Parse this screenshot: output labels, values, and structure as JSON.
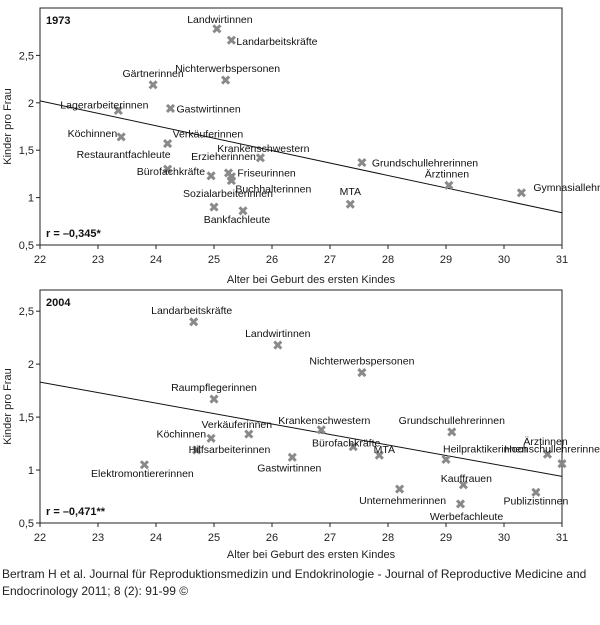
{
  "caption": "Bertram H et al. Journal für Reproduktionsmedizin und Endokrinologie - Journal of Reproductive Medicine and Endocrinology 2011; 8 (2): 91-99 ©",
  "chart_data": [
    {
      "type": "scatter",
      "panel": "1973",
      "xlabel": "Alter bei Geburt des ersten Kindes",
      "ylabel": "Kinder pro Frau",
      "xlim": [
        22,
        31
      ],
      "ylim": [
        0.5,
        3.0
      ],
      "xticks": [
        "22",
        "23",
        "24",
        "25",
        "26",
        "27",
        "28",
        "29",
        "30",
        "31"
      ],
      "yticks": [
        "0,5",
        "1",
        "1,5",
        "2",
        "2,5"
      ],
      "correlation": "r = –0,345*",
      "marker_color": "#8a8a8a",
      "regression": {
        "x": [
          22,
          31
        ],
        "y": [
          2.02,
          0.84
        ]
      },
      "points": [
        {
          "label": "Landwirtinnen",
          "x": 25.05,
          "y": 2.78
        },
        {
          "label": "Landarbeitskräfte",
          "x": 25.3,
          "y": 2.66
        },
        {
          "label": "Gärtnerinnen",
          "x": 23.95,
          "y": 2.19
        },
        {
          "label": "Nichterwerbspersonen",
          "x": 25.2,
          "y": 2.24
        },
        {
          "label": "Lagerarbeiterinnen",
          "x": 23.35,
          "y": 1.92
        },
        {
          "label": "Gastwirtinnen",
          "x": 24.25,
          "y": 1.94
        },
        {
          "label": "Köchinnen",
          "x": 23.4,
          "y": 1.64
        },
        {
          "label": "Verkäuferinnen",
          "x": 24.2,
          "y": 1.57
        },
        {
          "label": "Krankenschwestern",
          "x": 25.8,
          "y": 1.42
        },
        {
          "label": "Erzieherinnen",
          "x": 25.25,
          "y": 1.26
        },
        {
          "label": "Restaurantfachleute",
          "x": 24.2,
          "y": 1.3
        },
        {
          "label": "Friseurinnen",
          "x": 25.3,
          "y": 1.22
        },
        {
          "label": "Bürofachkräfte",
          "x": 24.95,
          "y": 1.23
        },
        {
          "label": "Buchhalterinnen",
          "x": 25.3,
          "y": 1.18
        },
        {
          "label": "Grundschullehrerinnen",
          "x": 27.55,
          "y": 1.37
        },
        {
          "label": "Ärztinnen",
          "x": 29.05,
          "y": 1.13
        },
        {
          "label": "Gymnasiallehrerinnen",
          "x": 30.3,
          "y": 1.05
        },
        {
          "label": "Sozialarbeiterinnen",
          "x": 25.0,
          "y": 0.9
        },
        {
          "label": "MTA",
          "x": 27.35,
          "y": 0.93
        },
        {
          "label": "Bankfachleute",
          "x": 25.5,
          "y": 0.86
        }
      ]
    },
    {
      "type": "scatter",
      "panel": "2004",
      "xlabel": "Alter bei Geburt des ersten Kindes",
      "ylabel": "Kinder pro Frau",
      "xlim": [
        22,
        31
      ],
      "ylim": [
        0.5,
        2.7
      ],
      "xticks": [
        "22",
        "23",
        "24",
        "25",
        "26",
        "27",
        "28",
        "29",
        "30",
        "31"
      ],
      "yticks": [
        "0,5",
        "1",
        "1,5",
        "2",
        "2,5"
      ],
      "correlation": "r = –0,471**",
      "marker_color": "#8a8a8a",
      "regression": {
        "x": [
          22,
          31
        ],
        "y": [
          1.83,
          0.94
        ]
      },
      "points": [
        {
          "label": "Landarbeitskräfte",
          "x": 24.65,
          "y": 2.4
        },
        {
          "label": "Landwirtinnen",
          "x": 26.1,
          "y": 2.18
        },
        {
          "label": "Nichterwerbspersonen",
          "x": 27.55,
          "y": 1.92
        },
        {
          "label": "Raumpflegerinnen",
          "x": 25.0,
          "y": 1.67
        },
        {
          "label": "Verkäuferinnen",
          "x": 25.6,
          "y": 1.34
        },
        {
          "label": "Krankenschwestern",
          "x": 26.85,
          "y": 1.38
        },
        {
          "label": "Köchinnen",
          "x": 24.95,
          "y": 1.3
        },
        {
          "label": "Grundschullehrerinnen",
          "x": 29.1,
          "y": 1.36
        },
        {
          "label": "Ärztinnen",
          "x": 30.75,
          "y": 1.15
        },
        {
          "label": "Hilfsarbeiterinnen",
          "x": 24.7,
          "y": 1.19
        },
        {
          "label": "Elektromontiererinnen",
          "x": 23.8,
          "y": 1.05
        },
        {
          "label": "Bürofachkräfte",
          "x": 27.4,
          "y": 1.22
        },
        {
          "label": "Heilpraktikerinnen",
          "x": 29.0,
          "y": 1.1
        },
        {
          "label": "Gastwirtinnen",
          "x": 26.35,
          "y": 1.12
        },
        {
          "label": "MTA",
          "x": 27.85,
          "y": 1.14
        },
        {
          "label": "Kauffrauen",
          "x": 29.3,
          "y": 0.86
        },
        {
          "label": "Hochschullehrerinnen",
          "x": 31.0,
          "y": 1.06
        },
        {
          "label": "Unternehmerinnen",
          "x": 28.2,
          "y": 0.82
        },
        {
          "label": "Publizistinnen",
          "x": 30.55,
          "y": 0.79
        },
        {
          "label": "Werbefachleute",
          "x": 29.25,
          "y": 0.68
        }
      ]
    }
  ]
}
